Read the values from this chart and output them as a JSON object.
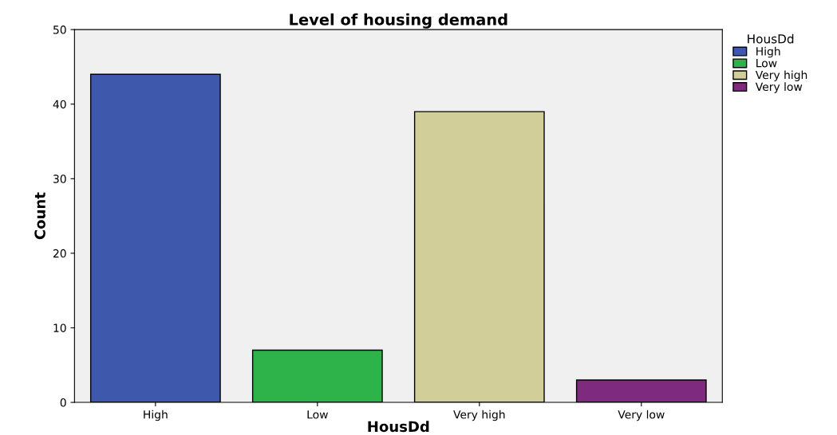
{
  "chart_data": {
    "type": "bar",
    "title": "Level of housing demand",
    "xlabel": "HousDd",
    "ylabel": "Count",
    "legend_title": "HousDd",
    "legend": "right",
    "stacked": true,
    "categories": [
      "High",
      "Low",
      "Very high",
      "Very low"
    ],
    "series": [
      {
        "name": "High",
        "color": "#3e58ac",
        "values": [
          44,
          null,
          null,
          null
        ]
      },
      {
        "name": "Low",
        "color": "#2db34a",
        "values": [
          null,
          7,
          null,
          null
        ]
      },
      {
        "name": "Very high",
        "color": "#d2ce9a",
        "values": [
          null,
          null,
          39,
          null
        ]
      },
      {
        "name": "Very low",
        "color": "#7e2a7e",
        "values": [
          null,
          null,
          null,
          3
        ]
      }
    ],
    "ylim": [
      0,
      50
    ],
    "yticks": [
      0,
      10,
      20,
      30,
      40,
      50
    ],
    "grid": false
  }
}
